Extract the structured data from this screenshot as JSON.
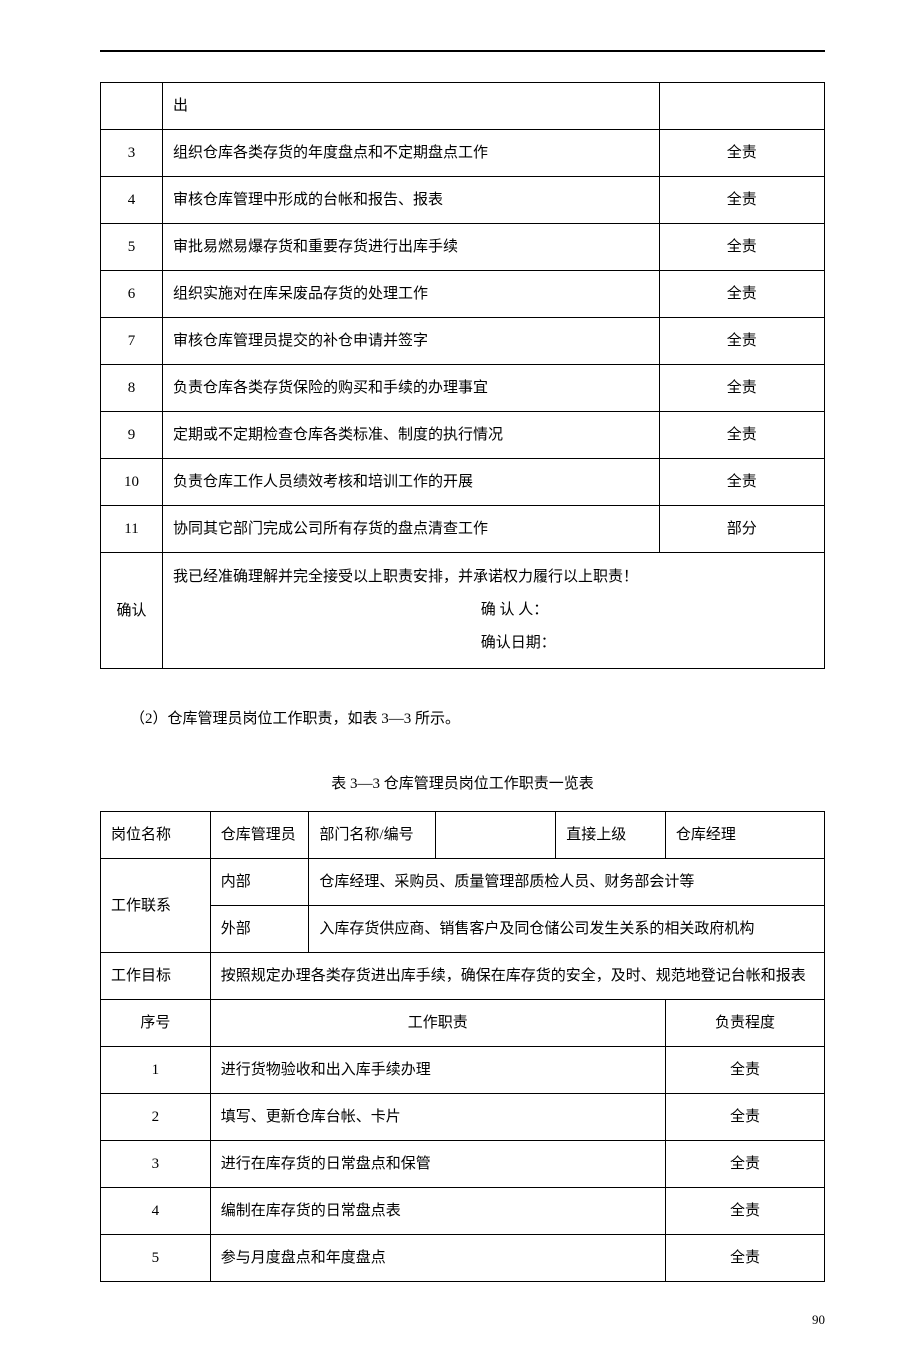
{
  "table1": {
    "row_continuation": {
      "text": "出"
    },
    "rows": [
      {
        "seq": "3",
        "duty": "组织仓库各类存货的年度盘点和不定期盘点工作",
        "resp": "全责"
      },
      {
        "seq": "4",
        "duty": "审核仓库管理中形成的台帐和报告、报表",
        "resp": "全责"
      },
      {
        "seq": "5",
        "duty": "审批易燃易爆存货和重要存货进行出库手续",
        "resp": "全责"
      },
      {
        "seq": "6",
        "duty": "组织实施对在库呆废品存货的处理工作",
        "resp": "全责"
      },
      {
        "seq": "7",
        "duty": "审核仓库管理员提交的补仓申请并签字",
        "resp": "全责"
      },
      {
        "seq": "8",
        "duty": "负责仓库各类存货保险的购买和手续的办理事宜",
        "resp": "全责"
      },
      {
        "seq": "9",
        "duty": "定期或不定期检查仓库各类标准、制度的执行情况",
        "resp": "全责"
      },
      {
        "seq": "10",
        "duty": "负责仓库工作人员绩效考核和培训工作的开展",
        "resp": "全责"
      },
      {
        "seq": "11",
        "duty": "协同其它部门完成公司所有存货的盘点清查工作",
        "resp": "部分"
      }
    ],
    "confirm": {
      "label": "确认",
      "statement": "我已经准确理解并完全接受以上职责安排，并承诺权力履行以上职责！",
      "person_label": "确 认 人：",
      "date_label": "确认日期："
    }
  },
  "body_text": "（2）仓库管理员岗位工作职责，如表 3—3 所示。",
  "table2": {
    "caption": "表 3—3 仓库管理员岗位工作职责一览表",
    "header_row1": {
      "position_label": "岗位名称",
      "position_value": "仓库管理员",
      "dept_label": "部门名称/编号",
      "dept_value": "",
      "superior_label": "直接上级",
      "superior_value": "仓库经理"
    },
    "contact_label": "工作联系",
    "contact_internal_label": "内部",
    "contact_internal_value": "仓库经理、采购员、质量管理部质检人员、财务部会计等",
    "contact_external_label": "外部",
    "contact_external_value": "入库存货供应商、销售客户及同仓储公司发生关系的相关政府机构",
    "goal_label": "工作目标",
    "goal_value": "按照规定办理各类存货进出库手续，确保在库存货的安全，及时、规范地登记台帐和报表",
    "columns": {
      "seq": "序号",
      "duty": "工作职责",
      "resp": "负责程度"
    },
    "rows": [
      {
        "seq": "1",
        "duty": "进行货物验收和出入库手续办理",
        "resp": "全责"
      },
      {
        "seq": "2",
        "duty": "填写、更新仓库台帐、卡片",
        "resp": "全责"
      },
      {
        "seq": "3",
        "duty": "进行在库存货的日常盘点和保管",
        "resp": "全责"
      },
      {
        "seq": "4",
        "duty": "编制在库存货的日常盘点表",
        "resp": "全责"
      },
      {
        "seq": "5",
        "duty": "参与月度盘点和年度盘点",
        "resp": "全责"
      }
    ]
  },
  "page_number": "90"
}
